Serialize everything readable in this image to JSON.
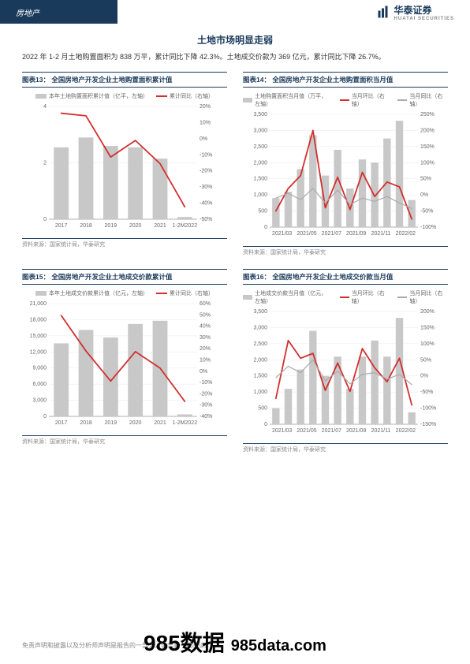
{
  "header": {
    "sector": "房地产",
    "brand": "华泰证券",
    "brand_sub": "HUATAI SECURITIES"
  },
  "section": {
    "title": "土地市场明显走弱",
    "desc": "2022 年 1-2 月土地购置面积为 838 万平，累计同比下降 42.3%。土地成交价款为 369 亿元，累计同比下降 26.7%。"
  },
  "chart13": {
    "title": "图表13：  全国房地产开发企业土地购置面积累计值",
    "type": "bar+line",
    "legend_bar": "本年土地购置面积累计值（亿平，左轴）",
    "legend_line": "累计同比（右轴）",
    "categories": [
      "2017",
      "2018",
      "2019",
      "2020",
      "2021",
      "1-2M2022"
    ],
    "bar_values": [
      2.55,
      2.9,
      2.6,
      2.55,
      2.15,
      0.08
    ],
    "line_values": [
      15.8,
      14.2,
      -11.4,
      -1.1,
      -15.5,
      -42.3
    ],
    "y_left": {
      "min": 0,
      "max": 4,
      "ticks": [
        0,
        2,
        4
      ]
    },
    "y_right": {
      "min": -50,
      "max": 20,
      "ticks": [
        -50,
        -40,
        -30,
        -20,
        -10,
        0,
        10,
        20
      ]
    },
    "bar_color": "#c8c8c8",
    "line_color": "#d32f2f",
    "grid_color": "#e8e8e8",
    "axis_fontsize": 7,
    "source": "资料来源：国家统计局，华泰研究"
  },
  "chart14": {
    "title": "图表14：  全国房地产开发企业土地购置面积当月值",
    "type": "bar+2line",
    "legend_bar": "土地购置面积当月值（万平，左轴）",
    "legend_line1": "当月环比（右轴）",
    "legend_line2": "当月同比（右轴）",
    "categories": [
      "2021/03",
      "2021/05",
      "2021/07",
      "2021/09",
      "2021/11",
      "2022/02"
    ],
    "bar_values": [
      900,
      1100,
      1800,
      2850,
      1600,
      2400,
      1200,
      2100,
      2000,
      2750,
      3300,
      840
    ],
    "line1_values": [
      -50,
      20,
      60,
      200,
      -40,
      55,
      -45,
      70,
      -5,
      40,
      25,
      -75
    ],
    "line2_values": [
      -10,
      5,
      -15,
      20,
      -25,
      15,
      -30,
      -10,
      -20,
      -5,
      -25,
      -42
    ],
    "y_left": {
      "min": 0,
      "max": 3500,
      "ticks": [
        0,
        500,
        1000,
        1500,
        2000,
        2500,
        3000,
        3500
      ]
    },
    "y_right": {
      "min": -100,
      "max": 250,
      "ticks": [
        -100,
        -50,
        0,
        50,
        100,
        150,
        200,
        250
      ]
    },
    "bar_color": "#c8c8c8",
    "line1_color": "#d32f2f",
    "line2_color": "#aaaaaa",
    "grid_color": "#e8e8e8",
    "axis_fontsize": 7,
    "source": "资料来源：国家统计局，华泰研究"
  },
  "chart15": {
    "title": "图表15：  全国房地产开发企业土地成交价款累计值",
    "type": "bar+line",
    "legend_bar": "本年土地成交价款累计值（亿元，左轴）",
    "legend_line": "累计同比（右轴）",
    "categories": [
      "2017",
      "2018",
      "2019",
      "2020",
      "2021",
      "1-2M2022"
    ],
    "bar_values": [
      13600,
      16100,
      14700,
      17200,
      17800,
      370
    ],
    "line_values": [
      49.4,
      18.0,
      -8.7,
      17.4,
      2.8,
      -26.7
    ],
    "y_left": {
      "min": 0,
      "max": 21000,
      "ticks": [
        0,
        3000,
        6000,
        9000,
        12000,
        15000,
        18000,
        21000
      ]
    },
    "y_right": {
      "min": -40,
      "max": 60,
      "ticks": [
        -40,
        -30,
        -20,
        -10,
        0,
        10,
        20,
        30,
        40,
        50,
        60
      ]
    },
    "bar_color": "#c8c8c8",
    "line_color": "#d32f2f",
    "grid_color": "#e8e8e8",
    "axis_fontsize": 7,
    "source": "资料来源：国家统计局，华泰研究"
  },
  "chart16": {
    "title": "图表16：  全国房地产开发企业土地成交价款当月值",
    "type": "bar+2line",
    "legend_bar": "土地成交价款当月值（亿元，左轴）",
    "legend_line1": "当月环比（右轴）",
    "legend_line2": "当月同比（右轴）",
    "categories": [
      "2021/03",
      "2021/05",
      "2021/07",
      "2021/09",
      "2021/11",
      "2022/02"
    ],
    "bar_values": [
      500,
      1100,
      1700,
      2900,
      1500,
      2100,
      1100,
      2100,
      2600,
      2100,
      3300,
      370
    ],
    "line1_values": [
      -70,
      110,
      55,
      70,
      -45,
      40,
      -48,
      85,
      25,
      -18,
      55,
      -90
    ],
    "line2_values": [
      -5,
      30,
      10,
      50,
      -15,
      15,
      -25,
      5,
      10,
      -10,
      5,
      -27
    ],
    "y_left": {
      "min": 0,
      "max": 3500,
      "ticks": [
        0,
        500,
        1000,
        1500,
        2000,
        2500,
        3000,
        3500
      ]
    },
    "y_right": {
      "min": -150,
      "max": 200,
      "ticks": [
        -150,
        -100,
        -50,
        0,
        50,
        100,
        150,
        200
      ]
    },
    "bar_color": "#c8c8c8",
    "line1_color": "#d32f2f",
    "line2_color": "#aaaaaa",
    "grid_color": "#e8e8e8",
    "axis_fontsize": 7,
    "source": "资料来源：国家统计局，华泰研究"
  },
  "footer": {
    "disclaimer": "免责声明和披露以及分析师声明是报告的一部分，请务必一起阅读。"
  },
  "watermark": {
    "main": "985数据",
    "sub": "985data.com"
  }
}
